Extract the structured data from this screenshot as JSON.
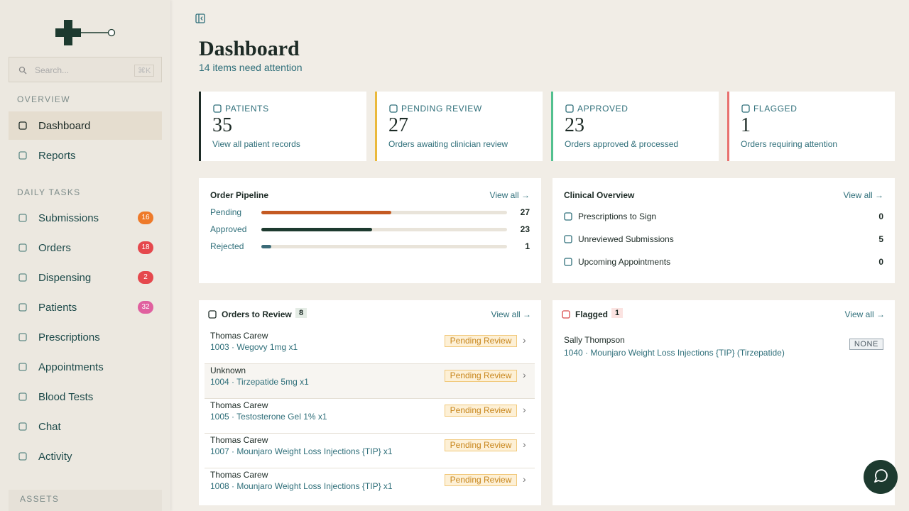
{
  "sidebar": {
    "search_placeholder": "Search...",
    "search_shortcut": "⌘K",
    "sections": [
      {
        "title": "OVERVIEW",
        "items": [
          {
            "label": "Dashboard"
          },
          {
            "label": "Reports"
          }
        ]
      },
      {
        "title": "DAILY TASKS",
        "items": [
          {
            "label": "Submissions",
            "badge": 16,
            "badge_color": "#ee7a2a"
          },
          {
            "label": "Orders",
            "badge": 18,
            "badge_color": "#e5484d"
          },
          {
            "label": "Dispensing",
            "badge": 2,
            "badge_color": "#e5484d"
          },
          {
            "label": "Patients",
            "badge": 32,
            "badge_color": "#e0609f"
          },
          {
            "label": "Prescriptions"
          },
          {
            "label": "Appointments"
          },
          {
            "label": "Blood Tests"
          },
          {
            "label": "Chat"
          },
          {
            "label": "Activity"
          }
        ]
      }
    ],
    "assets": "ASSETS"
  },
  "header": {
    "title": "Dashboard",
    "subtitle": "14 items need attention"
  },
  "stats": [
    {
      "label": "PATIENTS",
      "value": 35,
      "caption": "View all patient records",
      "color": "#1d2b26"
    },
    {
      "label": "PENDING REVIEW",
      "value": 27,
      "caption": "Orders awaiting clinician review",
      "color": "#eab93c"
    },
    {
      "label": "APPROVED",
      "value": 23,
      "caption": "Orders approved & processed",
      "color": "#52c08f"
    },
    {
      "label": "FLAGGED",
      "value": 1,
      "caption": "Orders requiring attention",
      "color": "#e8716f"
    }
  ],
  "pipeline": {
    "title": "Order Pipeline",
    "link": "View all →",
    "rows": [
      {
        "label": "Pending",
        "value": 27,
        "color": "#c45a22"
      },
      {
        "label": "Approved",
        "value": 23,
        "color": "#1d3a2f"
      },
      {
        "label": "Rejected",
        "value": 1,
        "color": "#3b6b78"
      }
    ]
  },
  "clinical": {
    "title": "Clinical Overview",
    "link": "View all →",
    "rows": [
      {
        "label": "Prescriptions to Sign",
        "value": 0
      },
      {
        "label": "Unreviewed Submissions",
        "value": 5
      },
      {
        "label": "Upcoming Appointments",
        "value": 0
      }
    ]
  },
  "orders": {
    "title": "Orders to Review",
    "count": 8,
    "link": "View all →",
    "rows": [
      {
        "name": "Thomas Carew",
        "detail": "1003 · Wegovy 1mg x1",
        "status": "Pending Review"
      },
      {
        "name": "Unknown",
        "detail": "1004 · Tirzepatide 5mg x1",
        "status": "Pending Review"
      },
      {
        "name": "Thomas Carew",
        "detail": "1005 · Testosterone Gel 1% x1",
        "status": "Pending Review"
      },
      {
        "name": "Thomas Carew",
        "detail": "1007 · Mounjaro Weight Loss Injections {TIP} x1",
        "status": "Pending Review"
      },
      {
        "name": "Thomas Carew",
        "detail": "1008 · Mounjaro Weight Loss Injections {TIP} x1",
        "status": "Pending Review"
      }
    ]
  },
  "flagged": {
    "title": "Flagged",
    "count": 1,
    "link": "View all →",
    "rows": [
      {
        "name": "Sally Thompson",
        "detail": "1040 · Mounjaro Weight Loss Injections {TIP} (Tirzepatide)",
        "status": "NONE"
      }
    ]
  }
}
